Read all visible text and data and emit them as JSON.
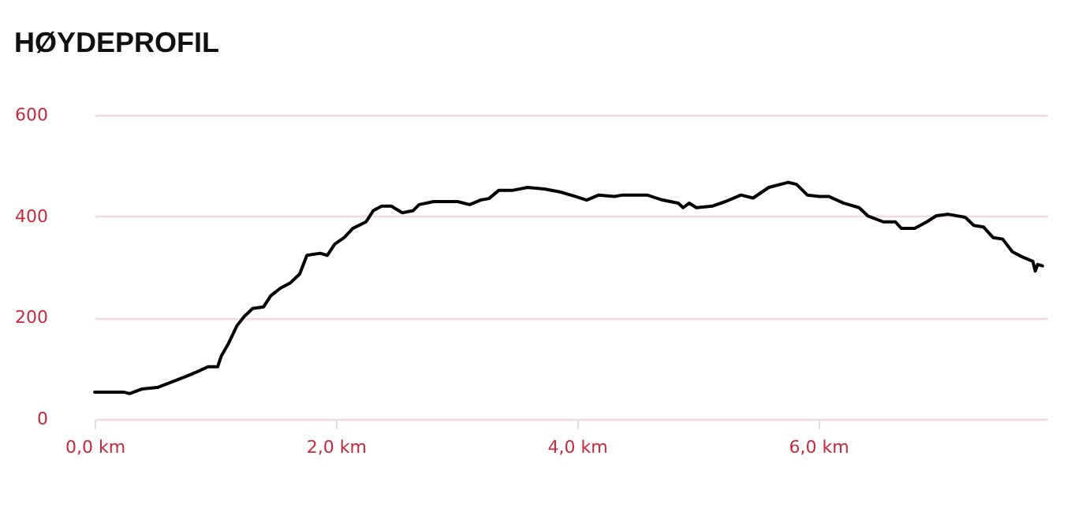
{
  "chart_data": {
    "type": "line",
    "title": "HØYDEPROFIL",
    "x": [
      0,
      0.24,
      0.29,
      0.39,
      0.52,
      0.63,
      0.76,
      0.85,
      0.94,
      1.02,
      1.05,
      1.11,
      1.18,
      1.24,
      1.31,
      1.4,
      1.46,
      1.54,
      1.62,
      1.7,
      1.76,
      1.87,
      1.93,
      1.99,
      2.07,
      2.14,
      2.25,
      2.31,
      2.38,
      2.46,
      2.55,
      2.64,
      2.69,
      2.81,
      3.01,
      3.11,
      3.2,
      3.27,
      3.35,
      3.46,
      3.59,
      3.73,
      3.86,
      3.99,
      4.08,
      4.18,
      4.31,
      4.38,
      4.58,
      4.71,
      4.84,
      4.88,
      4.93,
      4.99,
      5.12,
      5.23,
      5.36,
      5.46,
      5.59,
      5.75,
      5.82,
      5.91,
      6.01,
      6.09,
      6.21,
      6.34,
      6.41,
      6.54,
      6.64,
      6.69,
      6.8,
      6.9,
      6.98,
      7.08,
      7.22,
      7.29,
      7.37,
      7.45,
      7.53,
      7.61,
      7.69,
      7.78,
      7.8,
      7.82,
      7.86
    ],
    "series": [
      {
        "color": "#000000",
        "values": [
          53,
          53,
          50,
          59,
          62,
          72,
          84,
          93,
          103,
          103,
          124,
          149,
          184,
          202,
          218,
          221,
          243,
          258,
          268,
          286,
          323,
          327,
          323,
          345,
          358,
          376,
          389,
          411,
          420,
          420,
          407,
          411,
          423,
          429,
          429,
          423,
          432,
          435,
          451,
          451,
          457,
          454,
          448,
          439,
          432,
          442,
          439,
          442,
          442,
          432,
          426,
          417,
          426,
          417,
          420,
          429,
          442,
          436,
          457,
          467,
          463,
          442,
          439,
          439,
          426,
          417,
          401,
          389,
          389,
          376,
          376,
          389,
          401,
          404,
          398,
          382,
          379,
          358,
          355,
          330,
          320,
          311,
          292,
          305,
          302
        ]
      }
    ],
    "xlim": [
      0,
      7.9
    ],
    "xticks": [
      {
        "value": 0,
        "label": "0,0 km"
      },
      {
        "value": 2,
        "label": "2,0 km"
      },
      {
        "value": 4,
        "label": "4,0 km"
      },
      {
        "value": 6,
        "label": "6,0 km"
      }
    ],
    "ylim": [
      0,
      600
    ],
    "yticks": [
      0,
      200,
      400,
      600
    ],
    "grid": "y",
    "marker": "none",
    "line_style": "solid"
  }
}
